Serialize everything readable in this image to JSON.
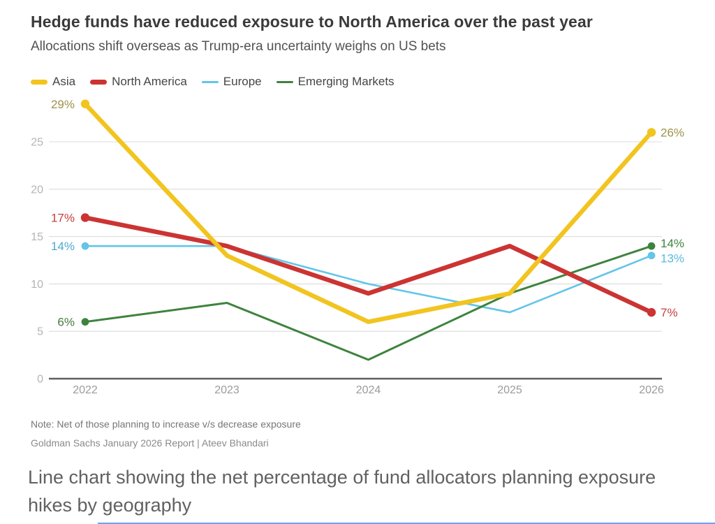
{
  "header": {
    "title": "Hedge funds have reduced exposure to North America over the past year",
    "subtitle": "Allocations shift overseas as Trump-era uncertainty weighs on US bets"
  },
  "footer": {
    "note": "Note: Net of those planning to increase v/s decrease exposure",
    "source": "Goldman Sachs January 2026 Report | Ateev Bhandari",
    "caption": "Line chart showing the net percentage of fund allocators planning exposure hikes by geography"
  },
  "colors": {
    "grid": "#dcdcdc",
    "zero_axis": "#5f5f5f",
    "y_tick_label": "#b4b4b4",
    "x_tick_label": "#9b9b9b",
    "bottom_divider": "#5b8def"
  },
  "chart_data": {
    "type": "line",
    "categories": [
      "2022",
      "2023",
      "2024",
      "2025",
      "2026"
    ],
    "yticks": [
      "0",
      "5",
      "10",
      "15",
      "20",
      "25"
    ],
    "ylim": [
      0,
      30
    ],
    "grid": "horizontal",
    "legend_position": "top-left",
    "series": [
      {
        "name": "Asia",
        "values": [
          29,
          13,
          6,
          9,
          26
        ],
        "color": "#f2c41f",
        "label_color_start": "#9d9348",
        "label_color_end": "#9d9348",
        "start_label": "29%",
        "end_label": "26%",
        "thick": true
      },
      {
        "name": "North America",
        "values": [
          17,
          14,
          9,
          14,
          7
        ],
        "color": "#cb3433",
        "label_color_start": "#c6403a",
        "label_color_end": "#c6403a",
        "start_label": "17%",
        "end_label": "7%",
        "thick": true
      },
      {
        "name": "Europe",
        "values": [
          14,
          14,
          10,
          7,
          13
        ],
        "color": "#62c5e9",
        "label_color_start": "#4fa8ce",
        "label_color_end": "#58b9e0",
        "start_label": "14%",
        "end_label": "13%",
        "thick": false
      },
      {
        "name": "Emerging Markets",
        "values": [
          6,
          8,
          2,
          9,
          14
        ],
        "color": "#3e833d",
        "label_color_start": "#477a40",
        "label_color_end": "#3e833d",
        "start_label": "6%",
        "end_label": "14%",
        "thick": false
      }
    ]
  }
}
